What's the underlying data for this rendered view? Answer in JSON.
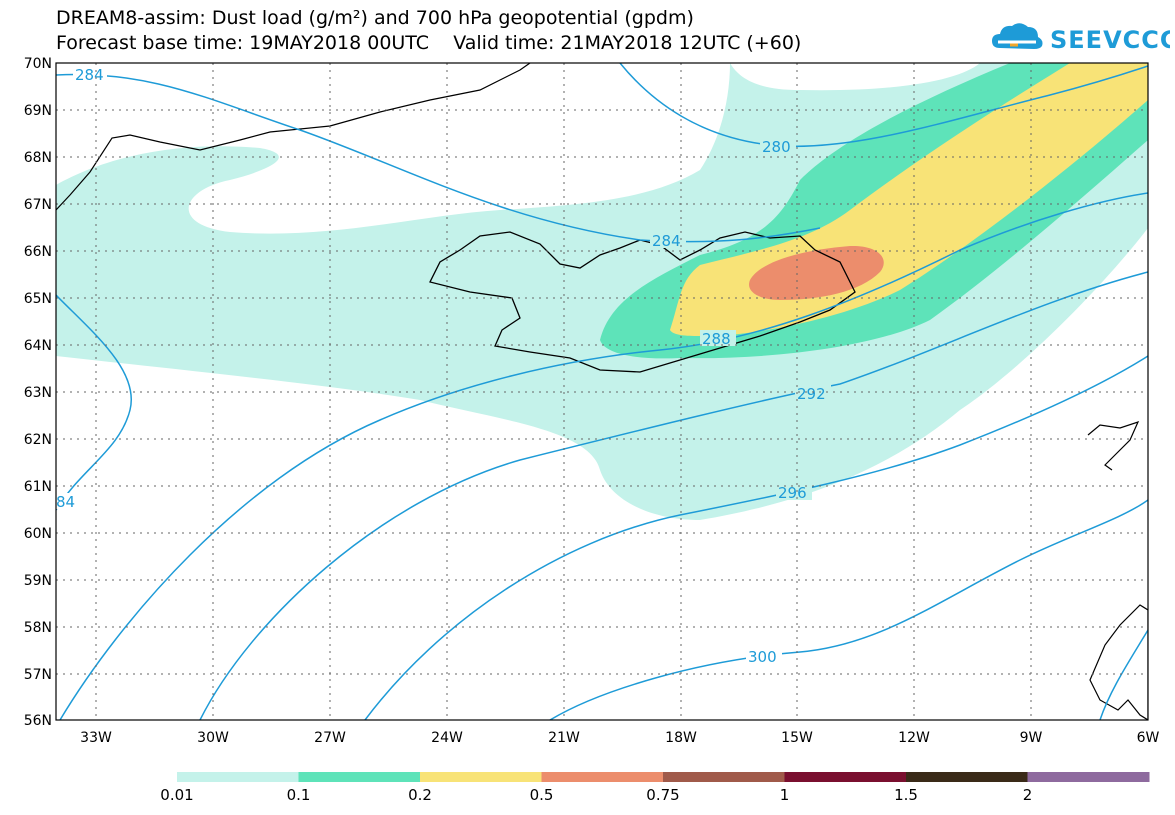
{
  "title_line1": "DREAM8-assim: Dust load (g/m²) and 700 hPa geopotential (gpdm)",
  "title_line2": "Forecast base time: 19MAY2018 00UTC    Valid time: 21MAY2018 12UTC (+60)",
  "logo_text": "SEEVCCC",
  "lat_labels": [
    "70N",
    "69N",
    "68N",
    "67N",
    "66N",
    "65N",
    "64N",
    "63N",
    "62N",
    "61N",
    "60N",
    "59N",
    "58N",
    "57N",
    "56N"
  ],
  "lon_labels": [
    "33W",
    "30W",
    "27W",
    "24W",
    "21W",
    "18W",
    "15W",
    "12W",
    "9W",
    "6W"
  ],
  "contour_labels": [
    "284",
    "280",
    "284",
    "288",
    "292",
    "296",
    "300",
    "84"
  ],
  "colorbar": {
    "colors": [
      "#c4f2ea",
      "#5ee3b9",
      "#f8e377",
      "#ec8d6c",
      "#a05a4a",
      "#7a0f2f",
      "#3a2a18",
      "#8e6a9e"
    ],
    "labels": [
      "0.01",
      "0.1",
      "0.2",
      "0.5",
      "0.75",
      "1",
      "1.5",
      "2"
    ]
  }
}
